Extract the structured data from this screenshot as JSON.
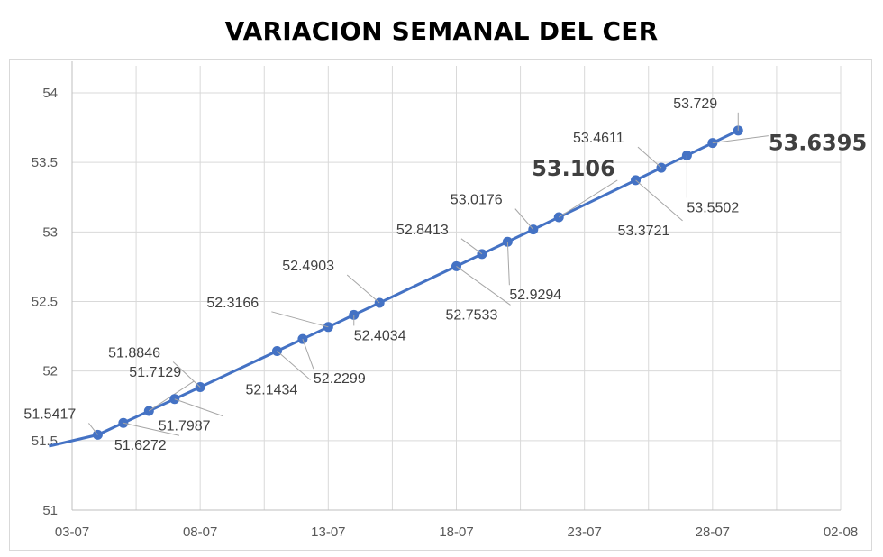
{
  "chart_data": {
    "type": "line",
    "title": "VARIACION SEMANAL DEL CER",
    "xlabel": "",
    "ylabel": "",
    "ylim": [
      51,
      54
    ],
    "yticks": [
      "51",
      "51.5",
      "52",
      "52.5",
      "53",
      "53.5",
      "54"
    ],
    "xticks": [
      "03-07",
      "08-07",
      "13-07",
      "18-07",
      "23-07",
      "28-07",
      "02-08"
    ],
    "xlim": [
      0,
      30
    ],
    "grid": true,
    "legend": "none",
    "line_color": "#4472C4",
    "series": [
      {
        "x": [
          -0.9,
          1,
          2,
          3,
          4,
          5,
          8,
          9,
          10,
          11,
          12,
          15,
          16,
          17,
          18,
          19,
          22,
          23,
          24,
          25,
          26
        ],
        "values": [
          51.46,
          51.5417,
          51.6272,
          51.7129,
          51.7987,
          51.8846,
          52.1434,
          52.2299,
          52.3166,
          52.4034,
          52.4903,
          52.7533,
          52.8413,
          52.9294,
          53.0176,
          53.106,
          53.3721,
          53.4611,
          53.5502,
          53.6395,
          53.729
        ],
        "labels": [
          "",
          "51.5417",
          "51.6272",
          "51.7129",
          "51.7987",
          "51.8846",
          "52.1434",
          "52.2299",
          "52.3166",
          "52.4034",
          "52.4903",
          "52.7533",
          "52.8413",
          "52.9294",
          "53.0176",
          "53.106",
          "53.3721",
          "53.4611",
          "53.5502",
          "53.6395",
          "53.729"
        ]
      }
    ]
  }
}
